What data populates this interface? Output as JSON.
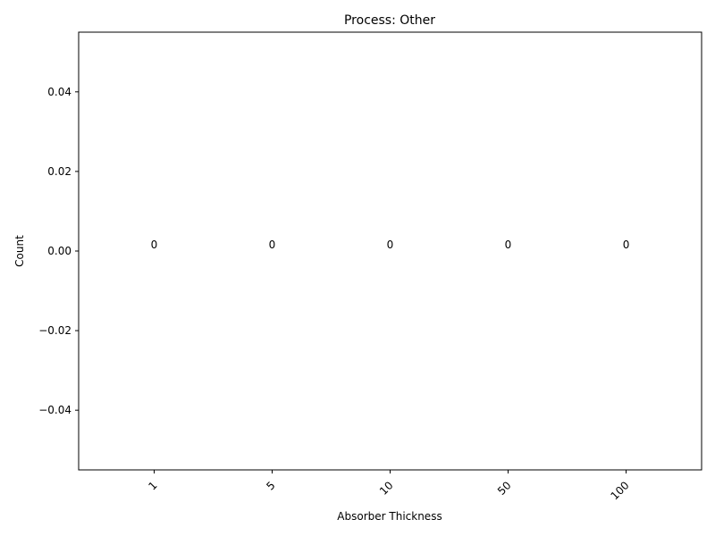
{
  "chart_data": {
    "type": "bar",
    "title": "Process: Other",
    "xlabel": "Absorber Thickness",
    "ylabel": "Count",
    "categories": [
      "1",
      "5",
      "10",
      "50",
      "100"
    ],
    "values": [
      0,
      0,
      0,
      0,
      0
    ],
    "data_labels": [
      "0",
      "0",
      "0",
      "0",
      "0"
    ],
    "ylim": [
      -0.055,
      0.055
    ],
    "yticks": [
      -0.04,
      -0.02,
      0.0,
      0.02,
      0.04
    ],
    "ytick_labels": [
      "−0.04",
      "−0.02",
      "0.00",
      "0.02",
      "0.04"
    ],
    "xtick_rotation": 45,
    "grid": false,
    "legend": "none"
  }
}
